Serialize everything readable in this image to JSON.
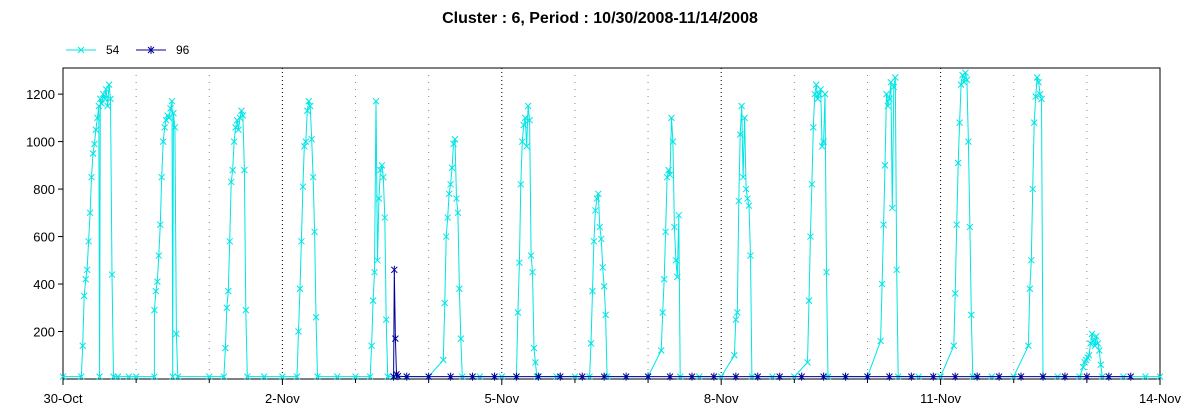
{
  "chart_data": {
    "type": "line",
    "title": "Cluster : 6, Period : 10/30/2008-11/14/2008",
    "xlabel": "",
    "ylabel": "",
    "x_range_days": [
      0,
      15
    ],
    "ylim": [
      0,
      1310
    ],
    "grid": "vertical-dotted",
    "legend_position": "top-left",
    "x_ticks": [
      {
        "day": 0,
        "label": "30-Oct"
      },
      {
        "day": 3,
        "label": "2-Nov"
      },
      {
        "day": 6,
        "label": "5-Nov"
      },
      {
        "day": 9,
        "label": "8-Nov"
      },
      {
        "day": 12,
        "label": "11-Nov"
      },
      {
        "day": 15,
        "label": "14-Nov"
      }
    ],
    "x_minor_ticks": [
      1,
      2,
      4,
      5,
      7,
      8,
      10,
      11,
      13,
      14
    ],
    "y_ticks": [
      200,
      400,
      600,
      800,
      1000,
      1200
    ],
    "series": [
      {
        "name": "54",
        "color": "#00e5e5",
        "marker": "x",
        "daily_peaks": [
          1240,
          1170,
          1130,
          1170,
          1170,
          1010,
          1150,
          780,
          1100,
          1150,
          1240,
          1270,
          1290,
          1270,
          190
        ],
        "points": [
          [
            0.0,
            10
          ],
          [
            0.25,
            10
          ],
          [
            0.5,
            10
          ],
          [
            0.75,
            10
          ],
          [
            0.9,
            10
          ],
          [
            0.27,
            140
          ],
          [
            0.29,
            350
          ],
          [
            0.31,
            420
          ],
          [
            0.33,
            460
          ],
          [
            0.35,
            580
          ],
          [
            0.37,
            700
          ],
          [
            0.39,
            850
          ],
          [
            0.41,
            950
          ],
          [
            0.43,
            990
          ],
          [
            0.45,
            1050
          ],
          [
            0.47,
            1100
          ],
          [
            0.49,
            1150
          ],
          [
            0.51,
            1180
          ],
          [
            0.53,
            1160
          ],
          [
            0.55,
            1200
          ],
          [
            0.57,
            1180
          ],
          [
            0.59,
            1220
          ],
          [
            0.61,
            1150
          ],
          [
            0.63,
            1240
          ],
          [
            0.65,
            1180
          ],
          [
            0.67,
            440
          ],
          [
            0.69,
            10
          ],
          [
            1.0,
            10
          ],
          [
            1.25,
            10
          ],
          [
            1.5,
            10
          ],
          [
            1.25,
            290
          ],
          [
            1.27,
            370
          ],
          [
            1.29,
            410
          ],
          [
            1.31,
            520
          ],
          [
            1.33,
            650
          ],
          [
            1.35,
            850
          ],
          [
            1.37,
            1000
          ],
          [
            1.39,
            1060
          ],
          [
            1.41,
            1090
          ],
          [
            1.43,
            1110
          ],
          [
            1.45,
            1100
          ],
          [
            1.47,
            1140
          ],
          [
            1.49,
            1170
          ],
          [
            1.51,
            1120
          ],
          [
            1.53,
            1060
          ],
          [
            1.55,
            190
          ],
          [
            1.57,
            10
          ],
          [
            2.0,
            10
          ],
          [
            2.2,
            10
          ],
          [
            2.22,
            130
          ],
          [
            2.24,
            300
          ],
          [
            2.26,
            370
          ],
          [
            2.28,
            580
          ],
          [
            2.3,
            830
          ],
          [
            2.32,
            880
          ],
          [
            2.34,
            1000
          ],
          [
            2.36,
            1060
          ],
          [
            2.38,
            1090
          ],
          [
            2.4,
            1050
          ],
          [
            2.42,
            1100
          ],
          [
            2.44,
            1130
          ],
          [
            2.46,
            1110
          ],
          [
            2.48,
            880
          ],
          [
            2.5,
            290
          ],
          [
            2.52,
            10
          ],
          [
            2.75,
            10
          ],
          [
            3.0,
            10
          ],
          [
            3.2,
            10
          ],
          [
            3.22,
            200
          ],
          [
            3.24,
            380
          ],
          [
            3.26,
            580
          ],
          [
            3.28,
            810
          ],
          [
            3.3,
            980
          ],
          [
            3.32,
            1000
          ],
          [
            3.34,
            1130
          ],
          [
            3.36,
            1170
          ],
          [
            3.38,
            1150
          ],
          [
            3.4,
            1010
          ],
          [
            3.42,
            850
          ],
          [
            3.44,
            620
          ],
          [
            3.46,
            260
          ],
          [
            3.48,
            10
          ],
          [
            3.75,
            10
          ],
          [
            4.0,
            10
          ],
          [
            4.2,
            10
          ],
          [
            4.22,
            140
          ],
          [
            4.24,
            330
          ],
          [
            4.26,
            450
          ],
          [
            4.28,
            1170
          ],
          [
            4.3,
            500
          ],
          [
            4.32,
            760
          ],
          [
            4.34,
            880
          ],
          [
            4.36,
            900
          ],
          [
            4.38,
            850
          ],
          [
            4.4,
            680
          ],
          [
            4.42,
            250
          ],
          [
            4.44,
            10
          ],
          [
            4.7,
            10
          ],
          [
            5.0,
            10
          ],
          [
            5.2,
            80
          ],
          [
            5.22,
            320
          ],
          [
            5.24,
            600
          ],
          [
            5.26,
            680
          ],
          [
            5.28,
            780
          ],
          [
            5.3,
            820
          ],
          [
            5.32,
            890
          ],
          [
            5.34,
            990
          ],
          [
            5.36,
            1010
          ],
          [
            5.38,
            760
          ],
          [
            5.4,
            700
          ],
          [
            5.42,
            380
          ],
          [
            5.44,
            170
          ],
          [
            5.46,
            10
          ],
          [
            5.7,
            10
          ],
          [
            6.0,
            10
          ],
          [
            6.2,
            10
          ],
          [
            6.22,
            280
          ],
          [
            6.24,
            490
          ],
          [
            6.26,
            820
          ],
          [
            6.28,
            1000
          ],
          [
            6.3,
            1070
          ],
          [
            6.32,
            1100
          ],
          [
            6.34,
            980
          ],
          [
            6.36,
            1150
          ],
          [
            6.38,
            1090
          ],
          [
            6.4,
            520
          ],
          [
            6.42,
            450
          ],
          [
            6.44,
            130
          ],
          [
            6.46,
            70
          ],
          [
            6.48,
            10
          ],
          [
            6.75,
            10
          ],
          [
            7.0,
            10
          ],
          [
            7.2,
            10
          ],
          [
            7.22,
            150
          ],
          [
            7.24,
            370
          ],
          [
            7.26,
            580
          ],
          [
            7.28,
            710
          ],
          [
            7.3,
            760
          ],
          [
            7.32,
            780
          ],
          [
            7.34,
            640
          ],
          [
            7.36,
            590
          ],
          [
            7.38,
            470
          ],
          [
            7.4,
            390
          ],
          [
            7.42,
            270
          ],
          [
            7.44,
            10
          ],
          [
            7.7,
            10
          ],
          [
            8.0,
            10
          ],
          [
            8.18,
            120
          ],
          [
            8.2,
            280
          ],
          [
            8.22,
            420
          ],
          [
            8.24,
            620
          ],
          [
            8.26,
            850
          ],
          [
            8.28,
            880
          ],
          [
            8.3,
            860
          ],
          [
            8.32,
            1100
          ],
          [
            8.34,
            1000
          ],
          [
            8.36,
            640
          ],
          [
            8.38,
            500
          ],
          [
            8.4,
            430
          ],
          [
            8.42,
            690
          ],
          [
            8.44,
            10
          ],
          [
            8.7,
            10
          ],
          [
            9.0,
            10
          ],
          [
            9.18,
            100
          ],
          [
            9.2,
            250
          ],
          [
            9.22,
            280
          ],
          [
            9.24,
            750
          ],
          [
            9.26,
            1030
          ],
          [
            9.28,
            1150
          ],
          [
            9.3,
            850
          ],
          [
            9.32,
            1100
          ],
          [
            9.34,
            800
          ],
          [
            9.36,
            760
          ],
          [
            9.38,
            730
          ],
          [
            9.4,
            520
          ],
          [
            9.42,
            10
          ],
          [
            9.7,
            10
          ],
          [
            10.0,
            10
          ],
          [
            10.18,
            70
          ],
          [
            10.2,
            330
          ],
          [
            10.22,
            600
          ],
          [
            10.24,
            820
          ],
          [
            10.26,
            1060
          ],
          [
            10.28,
            1200
          ],
          [
            10.3,
            1240
          ],
          [
            10.32,
            1180
          ],
          [
            10.34,
            1200
          ],
          [
            10.36,
            1220
          ],
          [
            10.38,
            980
          ],
          [
            10.4,
            1000
          ],
          [
            10.42,
            1200
          ],
          [
            10.44,
            450
          ],
          [
            10.46,
            10
          ],
          [
            10.7,
            10
          ],
          [
            11.0,
            10
          ],
          [
            11.18,
            160
          ],
          [
            11.2,
            400
          ],
          [
            11.22,
            650
          ],
          [
            11.24,
            900
          ],
          [
            11.26,
            1200
          ],
          [
            11.28,
            1150
          ],
          [
            11.3,
            1180
          ],
          [
            11.32,
            1250
          ],
          [
            11.34,
            720
          ],
          [
            11.36,
            1230
          ],
          [
            11.38,
            1270
          ],
          [
            11.4,
            460
          ],
          [
            11.42,
            10
          ],
          [
            11.7,
            10
          ],
          [
            12.0,
            10
          ],
          [
            12.18,
            140
          ],
          [
            12.2,
            360
          ],
          [
            12.22,
            650
          ],
          [
            12.24,
            910
          ],
          [
            12.26,
            1080
          ],
          [
            12.28,
            1240
          ],
          [
            12.3,
            1280
          ],
          [
            12.32,
            1250
          ],
          [
            12.34,
            1290
          ],
          [
            12.36,
            1260
          ],
          [
            12.38,
            1000
          ],
          [
            12.4,
            640
          ],
          [
            12.42,
            270
          ],
          [
            12.44,
            10
          ],
          [
            12.7,
            10
          ],
          [
            13.0,
            10
          ],
          [
            13.2,
            140
          ],
          [
            13.22,
            380
          ],
          [
            13.24,
            500
          ],
          [
            13.26,
            800
          ],
          [
            13.28,
            1080
          ],
          [
            13.3,
            1190
          ],
          [
            13.32,
            1270
          ],
          [
            13.34,
            1250
          ],
          [
            13.36,
            1200
          ],
          [
            13.38,
            1180
          ],
          [
            13.4,
            10
          ],
          [
            13.6,
            10
          ],
          [
            13.9,
            10
          ],
          [
            13.95,
            50
          ],
          [
            13.97,
            70
          ],
          [
            13.99,
            80
          ],
          [
            14.01,
            90
          ],
          [
            14.03,
            100
          ],
          [
            14.05,
            150
          ],
          [
            14.07,
            190
          ],
          [
            14.09,
            160
          ],
          [
            14.11,
            140
          ],
          [
            14.13,
            180
          ],
          [
            14.15,
            150
          ],
          [
            14.17,
            120
          ],
          [
            14.19,
            60
          ],
          [
            14.21,
            10
          ],
          [
            14.5,
            10
          ],
          [
            14.8,
            10
          ],
          [
            15.0,
            10
          ]
        ]
      },
      {
        "name": "96",
        "color": "#000099",
        "marker": "asterisk",
        "points": [
          [
            4.52,
            10
          ],
          [
            4.53,
            460
          ],
          [
            4.545,
            170
          ],
          [
            4.56,
            20
          ],
          [
            4.58,
            12
          ],
          [
            4.7,
            10
          ],
          [
            5.0,
            10
          ],
          [
            5.3,
            10
          ],
          [
            5.6,
            10
          ],
          [
            5.9,
            10
          ],
          [
            6.2,
            10
          ],
          [
            6.5,
            10
          ],
          [
            6.8,
            10
          ],
          [
            7.1,
            10
          ],
          [
            7.4,
            10
          ],
          [
            7.7,
            10
          ],
          [
            8.0,
            10
          ],
          [
            8.3,
            10
          ],
          [
            8.6,
            10
          ],
          [
            8.9,
            10
          ],
          [
            9.2,
            10
          ],
          [
            9.5,
            10
          ],
          [
            9.8,
            10
          ],
          [
            10.1,
            10
          ],
          [
            10.4,
            10
          ],
          [
            10.7,
            10
          ],
          [
            11.0,
            10
          ],
          [
            11.3,
            10
          ],
          [
            11.6,
            10
          ],
          [
            11.9,
            10
          ],
          [
            12.2,
            10
          ],
          [
            12.5,
            10
          ],
          [
            12.8,
            10
          ],
          [
            13.1,
            10
          ],
          [
            13.4,
            10
          ],
          [
            13.7,
            10
          ],
          [
            14.0,
            10
          ],
          [
            14.3,
            10
          ],
          [
            14.6,
            10
          ]
        ]
      }
    ]
  }
}
